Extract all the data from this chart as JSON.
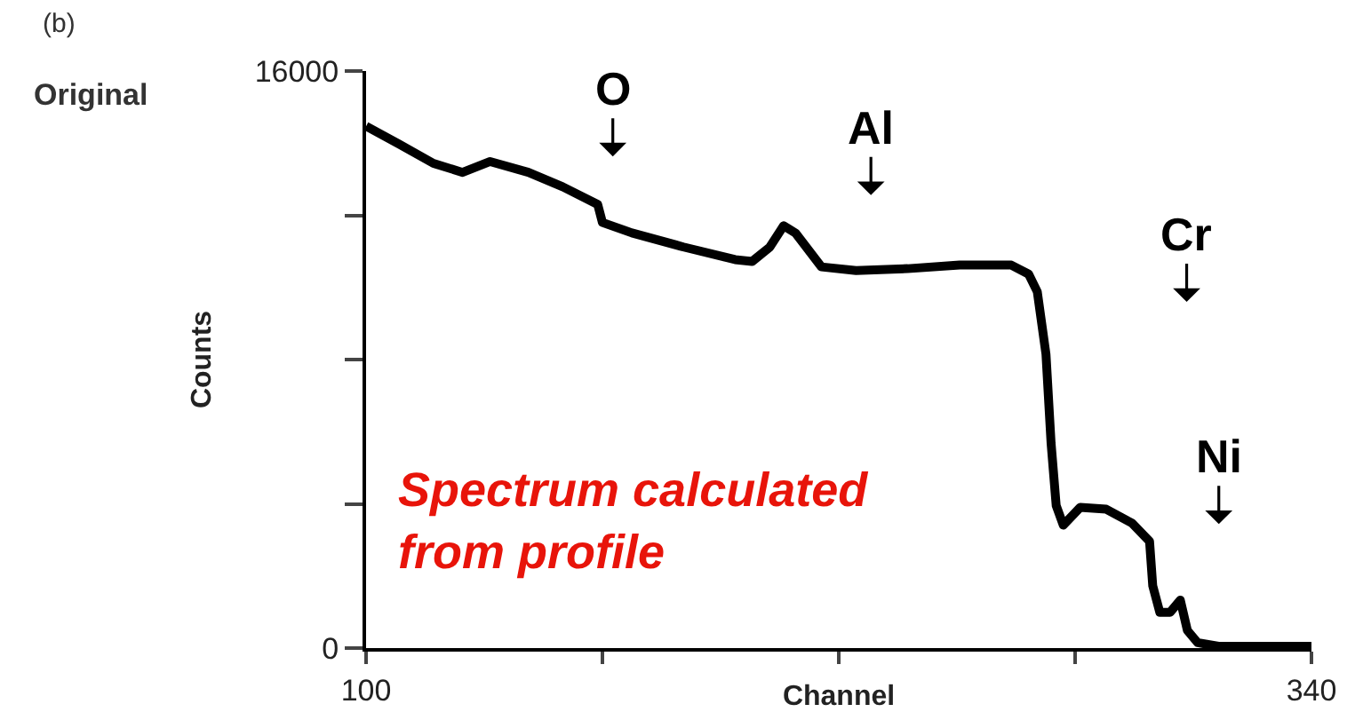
{
  "chart_data": {
    "type": "line",
    "xlabel": "Channel",
    "ylabel": "Counts",
    "x": [
      100,
      108.3,
      117.1,
      124.5,
      131.5,
      141.2,
      149.9,
      158.8,
      160,
      167.5,
      180.6,
      193.7,
      198,
      202.5,
      206,
      209,
      215.6,
      224.4,
      237.5,
      250.7,
      263.8,
      268.2,
      270.4,
      272.6,
      273.9,
      275.2,
      277,
      281.3,
      287.9,
      294.5,
      298.9,
      299.7,
      301.5,
      304.1,
      306.7,
      308.5,
      311.1,
      316.4,
      340
    ],
    "series": [
      {
        "color": "#000000",
        "values": [
          14470,
          13980,
          13440,
          13190,
          13490,
          13190,
          12790,
          12300,
          11800,
          11510,
          11120,
          10770,
          10720,
          11120,
          11710,
          11510,
          10570,
          10470,
          10520,
          10620,
          10620,
          10370,
          9880,
          8150,
          5680,
          3950,
          3410,
          3900,
          3850,
          3460,
          2960,
          1730,
          990,
          990,
          1330,
          490,
          150,
          50,
          50
        ]
      }
    ],
    "xlim": [
      100,
      340
    ],
    "xticks": [
      100,
      {
        "value": 160,
        "label": null
      },
      {
        "value": 220,
        "label": null
      },
      {
        "value": 280,
        "label": null
      },
      340
    ],
    "ylim": [
      0,
      16000
    ],
    "yticks": [
      0,
      {
        "value": 4000,
        "label": null
      },
      {
        "value": 8000,
        "label": null
      },
      {
        "value": 12000,
        "label": null
      },
      16000
    ],
    "grid": false,
    "line_style": "solid",
    "annotations": [
      "(b)",
      "Original",
      "O",
      "Al",
      "Cr",
      "Ni",
      "Spectrum calculated from profile"
    ]
  }
}
